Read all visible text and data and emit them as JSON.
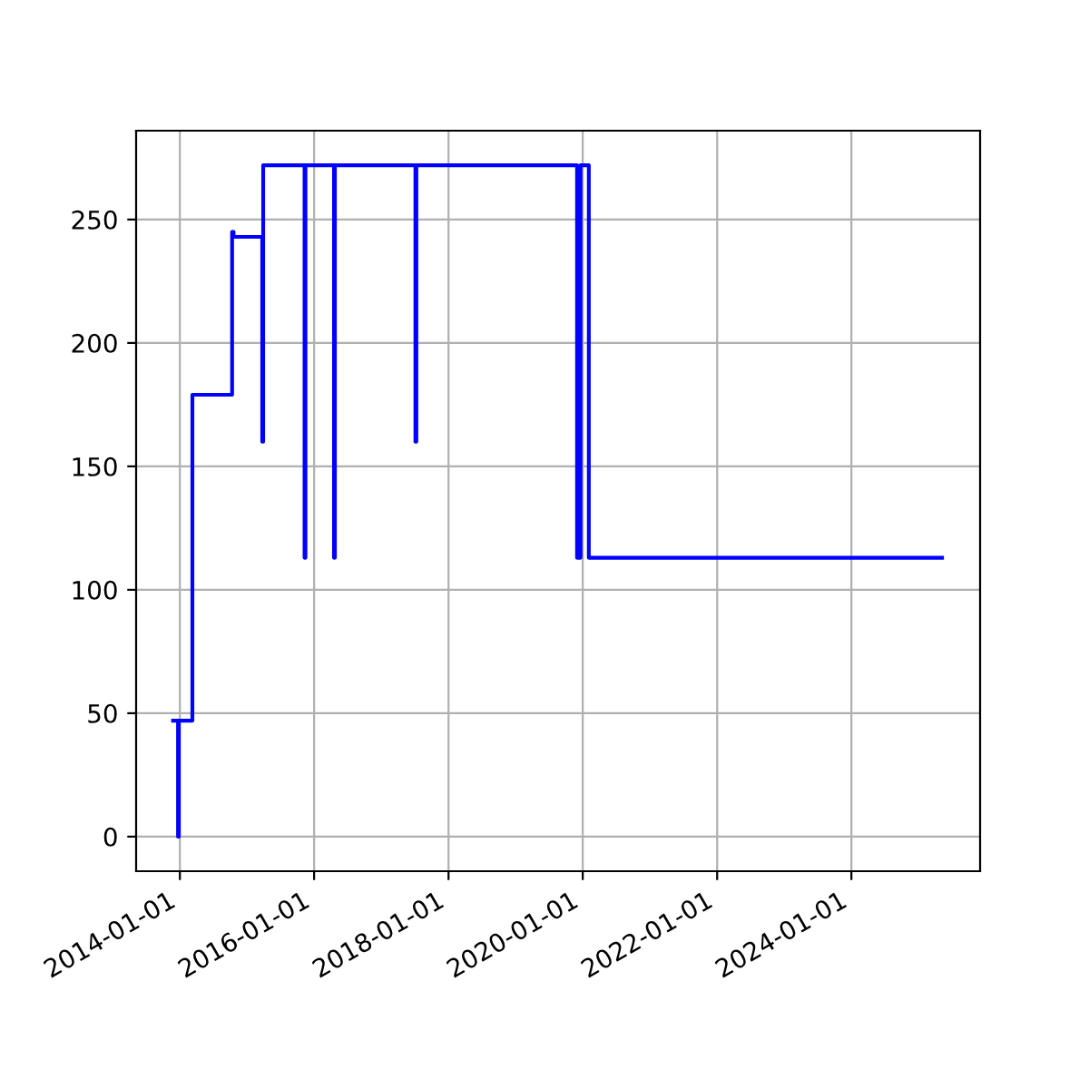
{
  "chart_data": {
    "type": "step",
    "x": [
      "2013-11-25",
      "2013-12-22",
      "2013-12-26",
      "2014-03-10",
      "2014-10-12",
      "2014-10-20",
      "2015-03-25",
      "2015-03-30",
      "2015-11-10",
      "2015-11-15",
      "2016-04-18",
      "2016-04-23",
      "2017-07-05",
      "2017-07-10",
      "2019-12-01",
      "2019-12-20",
      "2020-02-03",
      "2025-05-08"
    ],
    "series": [
      {
        "color": "#0000ff",
        "values": [
          47,
          0,
          47,
          179,
          245,
          243,
          160,
          272,
          113,
          272,
          113,
          272,
          160,
          272,
          113,
          272,
          113,
          113
        ]
      }
    ],
    "xlim": [
      "2013-05-08",
      "2025-12-01"
    ],
    "xticks": [
      {
        "value": "2014-01-01",
        "label": "2014-01-01"
      },
      {
        "value": "2016-01-01",
        "label": "2016-01-01"
      },
      {
        "value": "2018-01-01",
        "label": "2018-01-01"
      },
      {
        "value": "2020-01-01",
        "label": "2020-01-01"
      },
      {
        "value": "2022-01-01",
        "label": "2022-01-01"
      },
      {
        "value": "2024-01-01",
        "label": "2024-01-01"
      }
    ],
    "ylim": [
      -14,
      286
    ],
    "yticks": [
      0,
      50,
      100,
      150,
      200,
      250
    ],
    "grid": true
  }
}
